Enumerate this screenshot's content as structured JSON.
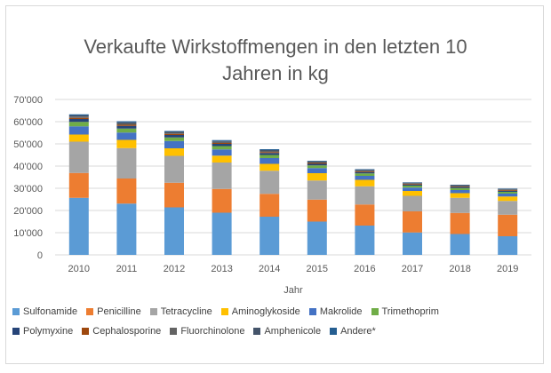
{
  "chart_data": {
    "type": "bar",
    "stacked": true,
    "title_lines": [
      "Verkaufte Wirkstoffmengen in den letzten 10",
      "Jahren in kg"
    ],
    "xlabel": "Jahr",
    "ylabel": "",
    "ylim": [
      0,
      70000
    ],
    "ytick_values": [
      0,
      10000,
      20000,
      30000,
      40000,
      50000,
      60000,
      70000
    ],
    "ytick_labels": [
      "0",
      "10'000",
      "20'000",
      "30'000",
      "40'000",
      "50'000",
      "60'000",
      "70'000"
    ],
    "categories": [
      "2010",
      "2011",
      "2012",
      "2013",
      "2014",
      "2015",
      "2016",
      "2017",
      "2018",
      "2019"
    ],
    "gridlines": true,
    "legend_position": "bottom",
    "series": [
      {
        "name": "Sulfonamide",
        "color": "#5b9bd5",
        "values": [
          25700,
          23100,
          21400,
          19000,
          17200,
          15000,
          13200,
          10100,
          9400,
          8400
        ]
      },
      {
        "name": "Penicilline",
        "color": "#ed7d31",
        "values": [
          11200,
          11300,
          11100,
          10700,
          10300,
          9900,
          9500,
          9500,
          9500,
          9700
        ]
      },
      {
        "name": "Tetracycline",
        "color": "#a5a5a5",
        "values": [
          14100,
          13700,
          12100,
          11900,
          10400,
          8600,
          8200,
          7000,
          6800,
          6200
        ]
      },
      {
        "name": "Aminoglykoside",
        "color": "#ffc000",
        "values": [
          3200,
          3700,
          3400,
          3100,
          3100,
          3300,
          2900,
          2200,
          2100,
          2000
        ]
      },
      {
        "name": "Makrolide",
        "color": "#4472c4",
        "values": [
          3700,
          3300,
          3300,
          2800,
          2600,
          2300,
          1800,
          1500,
          1400,
          1300
        ]
      },
      {
        "name": "Trimethoprim",
        "color": "#70ad47",
        "values": [
          2000,
          1800,
          1600,
          1500,
          1400,
          1200,
          1100,
          900,
          900,
          800
        ]
      },
      {
        "name": "Polymyxine",
        "color": "#264478",
        "values": [
          1300,
          1200,
          1100,
          1000,
          900,
          700,
          600,
          500,
          500,
          500
        ]
      },
      {
        "name": "Cephalosporine",
        "color": "#9e480e",
        "values": [
          500,
          500,
          500,
          400,
          400,
          400,
          300,
          300,
          300,
          300
        ]
      },
      {
        "name": "Fluorchinolone",
        "color": "#636363",
        "values": [
          600,
          600,
          500,
          500,
          500,
          400,
          400,
          300,
          300,
          300
        ]
      },
      {
        "name": "Amphenicole",
        "color": "#44546a",
        "values": [
          500,
          500,
          400,
          400,
          400,
          300,
          300,
          200,
          200,
          200
        ]
      },
      {
        "name": "Andere*",
        "color": "#255e91",
        "values": [
          500,
          500,
          400,
          400,
          400,
          300,
          300,
          200,
          200,
          200
        ]
      }
    ]
  }
}
